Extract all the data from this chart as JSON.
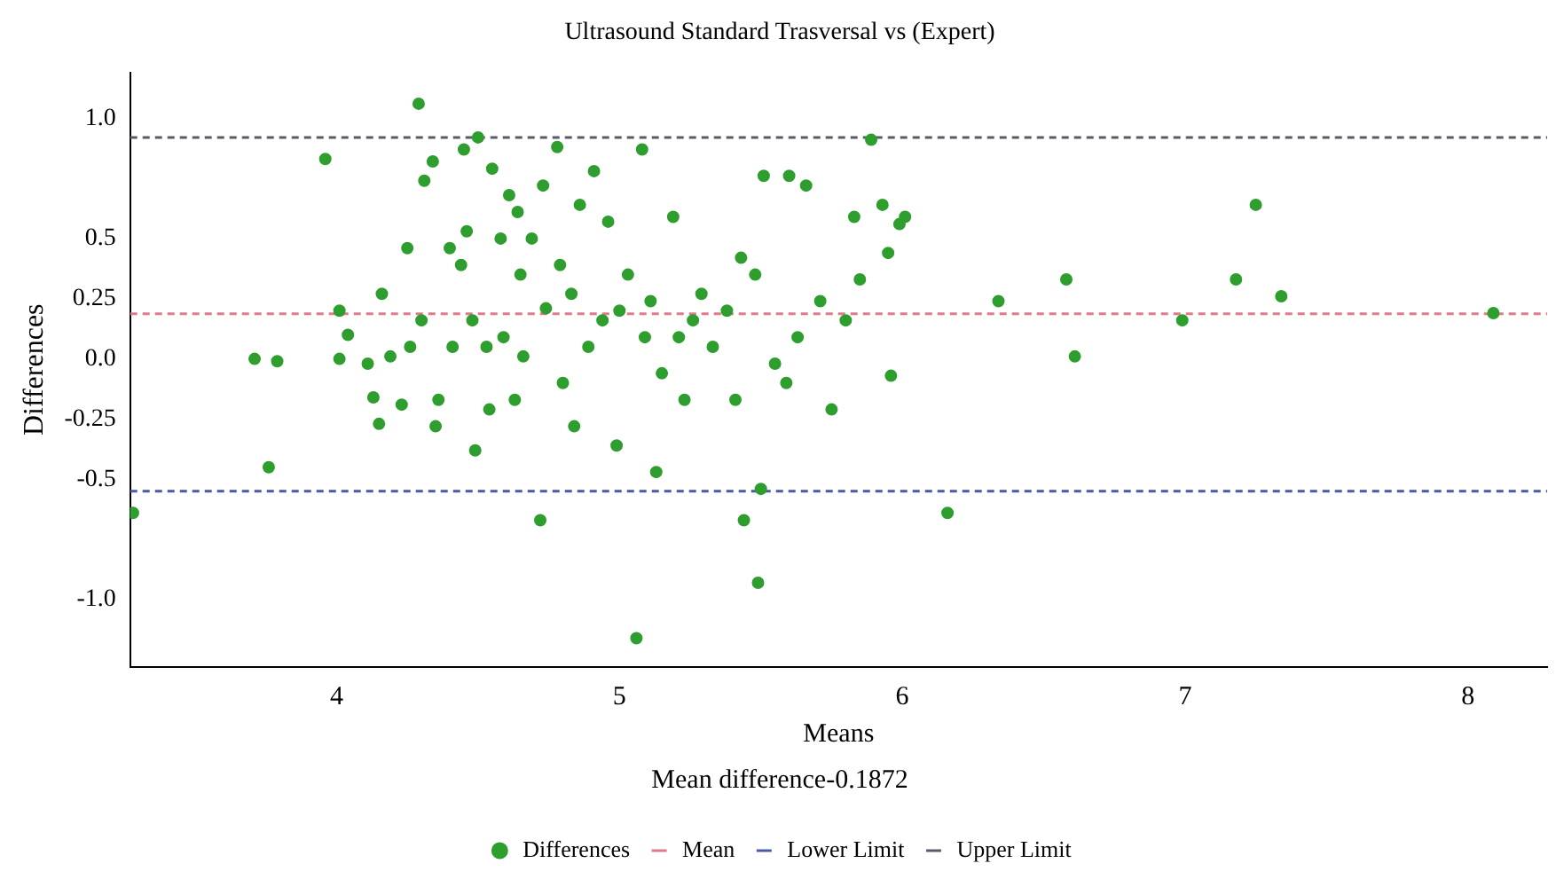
{
  "chart_data": {
    "type": "scatter",
    "title": "Ultrasound Standard Trasversal vs (Expert)",
    "xlabel": "Means",
    "ylabel": "Differences",
    "annotations": [
      "Mean difference-0.1872"
    ],
    "xlim": [
      3.27,
      8.28
    ],
    "xticks": [
      4,
      5,
      6,
      7,
      8
    ],
    "ylim": [
      -1.28,
      1.19
    ],
    "yticks": [
      {
        "value": 1.0,
        "label": "1.0"
      },
      {
        "value": 0.5,
        "label": "0.5"
      },
      {
        "value": 0.25,
        "label": "0.25"
      },
      {
        "value": 0.0,
        "label": "0.0"
      },
      {
        "value": -0.25,
        "label": "-0.25"
      },
      {
        "value": -0.5,
        "label": "-0.5"
      },
      {
        "value": -1.0,
        "label": "-1.0"
      }
    ],
    "grid": false,
    "legend": "bottom",
    "marker": "circle",
    "series": [
      {
        "name": "Differences",
        "color": "#2e9e2e",
        "x": [
          3.28,
          3.71,
          3.76,
          3.79,
          3.96,
          4.01,
          4.01,
          4.04,
          4.11,
          4.13,
          4.15,
          4.16,
          4.19,
          4.23,
          4.25,
          4.26,
          4.29,
          4.3,
          4.31,
          4.34,
          4.35,
          4.36,
          4.5,
          4.4,
          4.41,
          4.44,
          4.45,
          4.46,
          4.48,
          4.49,
          4.53,
          4.54,
          4.55,
          4.58,
          4.59,
          4.61,
          4.63,
          4.64,
          4.65,
          4.66,
          4.69,
          4.72,
          4.73,
          4.74,
          4.78,
          4.79,
          4.8,
          4.83,
          4.84,
          4.86,
          4.89,
          4.91,
          4.94,
          4.96,
          4.99,
          5.0,
          5.03,
          5.06,
          5.08,
          5.09,
          5.11,
          5.13,
          5.15,
          5.19,
          5.21,
          5.23,
          5.26,
          5.29,
          5.33,
          5.38,
          5.41,
          5.43,
          5.44,
          5.48,
          5.49,
          5.5,
          5.51,
          5.55,
          5.59,
          5.6,
          5.63,
          5.66,
          5.71,
          5.75,
          5.8,
          5.83,
          5.85,
          5.89,
          5.93,
          5.95,
          5.96,
          5.99,
          6.01,
          6.16,
          6.34,
          6.58,
          6.61,
          6.99,
          7.18,
          7.25,
          7.34,
          8.09
        ],
        "values": [
          -0.64,
          0.0,
          -0.45,
          -0.01,
          0.83,
          0.2,
          0.0,
          0.1,
          -0.02,
          -0.16,
          -0.27,
          0.27,
          0.01,
          -0.19,
          0.46,
          0.05,
          1.06,
          0.16,
          0.74,
          0.82,
          -0.28,
          -0.17,
          0.92,
          0.46,
          0.05,
          0.39,
          0.87,
          0.53,
          0.16,
          -0.38,
          0.05,
          -0.21,
          0.79,
          0.5,
          0.09,
          0.68,
          -0.17,
          0.61,
          0.35,
          0.01,
          0.5,
          -0.67,
          0.72,
          0.21,
          0.88,
          0.39,
          -0.1,
          0.27,
          -0.28,
          0.64,
          0.05,
          0.78,
          0.16,
          0.57,
          -0.36,
          0.2,
          0.35,
          -1.16,
          0.87,
          0.09,
          0.24,
          -0.47,
          -0.06,
          0.59,
          0.09,
          -0.17,
          0.16,
          0.27,
          0.05,
          0.2,
          -0.17,
          0.42,
          -0.67,
          0.35,
          -0.93,
          -0.54,
          0.76,
          -0.02,
          -0.1,
          0.76,
          0.09,
          0.72,
          0.24,
          -0.21,
          0.16,
          0.59,
          0.33,
          0.91,
          0.64,
          0.44,
          -0.07,
          0.56,
          0.59,
          -0.64,
          0.24,
          0.33,
          0.01,
          0.16,
          0.33,
          0.64,
          0.26,
          0.19
        ]
      }
    ],
    "ref_lines": [
      {
        "axis": "y",
        "value": 0.1872,
        "label": "Mean",
        "color": "#e07a8a",
        "line_style": "dashed"
      },
      {
        "axis": "y",
        "value": -0.55,
        "label": "Lower Limit",
        "color": "#4a5aa8",
        "line_style": "dashed"
      },
      {
        "axis": "y",
        "value": 0.92,
        "label": "Upper Limit",
        "color": "#5a5a6a",
        "line_style": "dashed"
      }
    ]
  }
}
